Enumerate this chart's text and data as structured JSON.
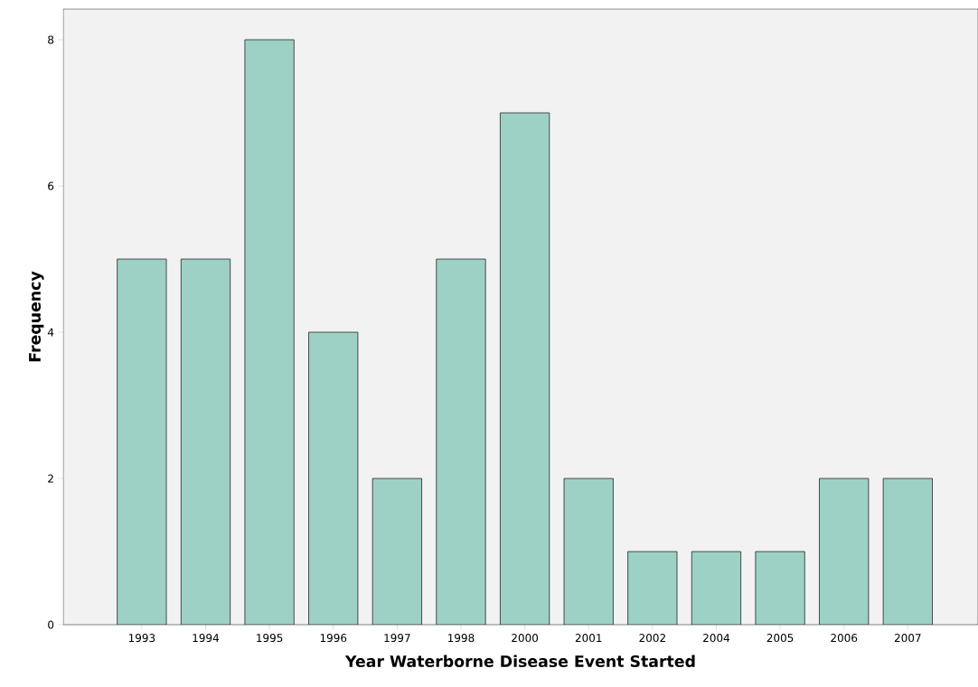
{
  "chart_data": {
    "type": "bar",
    "xlabel": "Year Waterborne Disease Event Started",
    "ylabel": "Frequency",
    "categories": [
      "1993",
      "1994",
      "1995",
      "1996",
      "1997",
      "1998",
      "2000",
      "2001",
      "2002",
      "2004",
      "2005",
      "2006",
      "2007"
    ],
    "values": [
      5,
      5,
      8,
      4,
      2,
      5,
      7,
      2,
      1,
      1,
      1,
      2,
      2
    ],
    "color": "#9ed1c5",
    "ylim": [
      0,
      8.42
    ],
    "yticks": [
      0,
      2,
      4,
      6,
      8
    ],
    "grid": false
  }
}
